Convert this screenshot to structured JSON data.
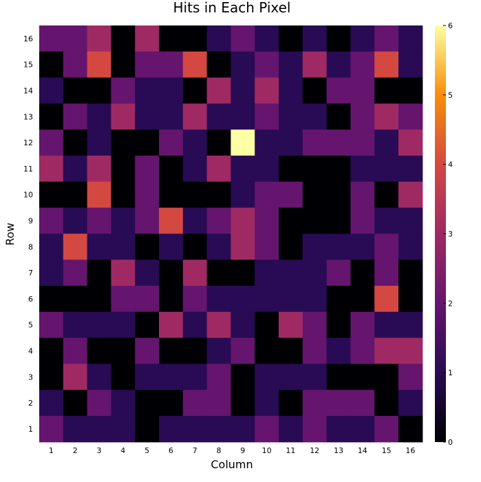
{
  "chart_data": {
    "type": "heatmap",
    "title": "Hits in Each Pixel",
    "xlabel": "Column",
    "ylabel": "Row",
    "x_categories": [
      "1",
      "2",
      "3",
      "4",
      "5",
      "6",
      "7",
      "8",
      "9",
      "10",
      "11",
      "12",
      "13",
      "14",
      "15",
      "16"
    ],
    "y_categories": [
      "1",
      "2",
      "3",
      "4",
      "5",
      "6",
      "7",
      "8",
      "9",
      "10",
      "11",
      "12",
      "13",
      "14",
      "15",
      "16"
    ],
    "colorbar": {
      "min": 0,
      "max": 6,
      "ticks": [
        "0",
        "1",
        "2",
        "3",
        "4",
        "5",
        "6"
      ],
      "colormap": "inferno"
    },
    "values_by_row_top_to_bottom": [
      [
        2,
        2,
        3,
        0,
        3,
        0,
        0,
        1,
        2,
        1,
        0,
        1,
        0,
        1,
        2,
        1
      ],
      [
        0,
        2,
        4,
        0,
        2,
        2,
        4,
        0,
        1,
        2,
        1,
        3,
        1,
        2,
        4,
        1
      ],
      [
        1,
        0,
        0,
        2,
        1,
        1,
        0,
        3,
        1,
        3,
        1,
        0,
        2,
        2,
        0,
        0
      ],
      [
        0,
        2,
        1,
        3,
        1,
        1,
        3,
        1,
        1,
        2,
        1,
        1,
        0,
        2,
        3,
        2
      ],
      [
        2,
        0,
        1,
        0,
        0,
        2,
        1,
        0,
        6,
        1,
        1,
        2,
        2,
        2,
        1,
        3
      ],
      [
        3,
        1,
        3,
        0,
        2,
        0,
        1,
        3,
        1,
        1,
        0,
        0,
        0,
        1,
        1,
        1
      ],
      [
        0,
        0,
        4,
        0,
        2,
        0,
        0,
        0,
        1,
        2,
        2,
        0,
        0,
        2,
        0,
        3
      ],
      [
        2,
        1,
        2,
        1,
        2,
        4,
        1,
        2,
        3,
        2,
        0,
        0,
        0,
        2,
        1,
        1
      ],
      [
        1,
        4,
        1,
        1,
        0,
        1,
        0,
        1,
        3,
        2,
        0,
        1,
        1,
        1,
        2,
        1
      ],
      [
        1,
        2,
        0,
        3,
        1,
        0,
        3,
        0,
        0,
        1,
        1,
        1,
        2,
        0,
        2,
        0
      ],
      [
        0,
        0,
        0,
        2,
        2,
        0,
        2,
        1,
        1,
        1,
        1,
        1,
        0,
        0,
        4,
        0
      ],
      [
        2,
        1,
        1,
        1,
        0,
        3,
        1,
        3,
        1,
        0,
        3,
        2,
        0,
        2,
        1,
        1
      ],
      [
        0,
        2,
        0,
        0,
        2,
        0,
        0,
        1,
        2,
        0,
        0,
        2,
        1,
        2,
        3,
        3
      ],
      [
        0,
        3,
        1,
        0,
        1,
        1,
        1,
        2,
        0,
        1,
        1,
        1,
        0,
        0,
        0,
        2
      ],
      [
        1,
        0,
        2,
        1,
        0,
        0,
        2,
        2,
        0,
        1,
        0,
        2,
        2,
        2,
        0,
        1
      ],
      [
        2,
        1,
        1,
        1,
        0,
        1,
        1,
        1,
        1,
        2,
        1,
        2,
        1,
        1,
        2,
        0
      ]
    ]
  }
}
